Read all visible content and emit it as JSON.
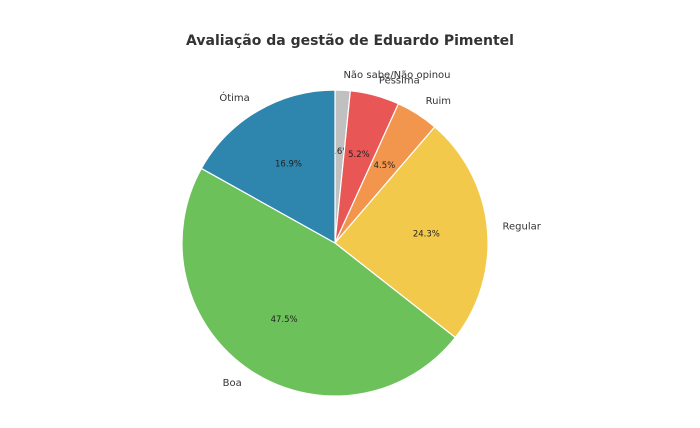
{
  "chart_data": {
    "type": "pie",
    "title": "Avaliação da gestão de Eduardo Pimentel",
    "slices": [
      {
        "label": "Não sabe/Não opinou",
        "value": 1.6,
        "pct_label": "1.6%",
        "color": "#c0c0c0"
      },
      {
        "label": "Péssima",
        "value": 5.2,
        "pct_label": "5.2%",
        "color": "#e85656"
      },
      {
        "label": "Ruim",
        "value": 4.5,
        "pct_label": "4.5%",
        "color": "#f3964d"
      },
      {
        "label": "Regular",
        "value": 24.3,
        "pct_label": "24.3%",
        "color": "#f2c94a"
      },
      {
        "label": "Boa",
        "value": 47.5,
        "pct_label": "47.5%",
        "color": "#6cc15b"
      },
      {
        "label": "Ótima",
        "value": 16.9,
        "pct_label": "16.9%",
        "color": "#2e86ae"
      }
    ],
    "start_angle_deg": 90,
    "direction": "clockwise",
    "legend": "none"
  }
}
